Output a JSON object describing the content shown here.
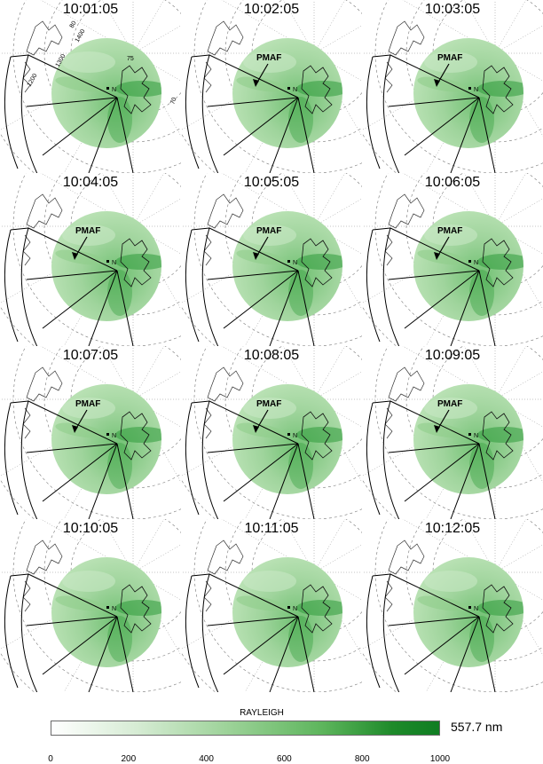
{
  "panels": [
    {
      "time": "10:01:05",
      "pmaf": false,
      "grid_labels": true
    },
    {
      "time": "10:02:05",
      "pmaf": true,
      "grid_labels": false
    },
    {
      "time": "10:03:05",
      "pmaf": true,
      "grid_labels": false
    },
    {
      "time": "10:04:05",
      "pmaf": true,
      "grid_labels": false
    },
    {
      "time": "10:05:05",
      "pmaf": true,
      "grid_labels": false
    },
    {
      "time": "10:06:05",
      "pmaf": true,
      "grid_labels": false
    },
    {
      "time": "10:07:05",
      "pmaf": true,
      "grid_labels": false
    },
    {
      "time": "10:08:05",
      "pmaf": true,
      "grid_labels": false
    },
    {
      "time": "10:09:05",
      "pmaf": true,
      "grid_labels": false
    },
    {
      "time": "10:10:05",
      "pmaf": false,
      "grid_labels": false
    },
    {
      "time": "10:11:05",
      "pmaf": false,
      "grid_labels": false
    },
    {
      "time": "10:12:05",
      "pmaf": false,
      "grid_labels": false
    }
  ],
  "pmaf_label": "PMAF",
  "station_label": "N",
  "grid_labels": {
    "lat_80": "80",
    "lat_75": "75",
    "lat_70": "70",
    "mlt_1400": "1400",
    "mlt_1300": "1300",
    "mlt_1200": "1200"
  },
  "colorbar": {
    "title": "RAYLEIGH",
    "wavelength": "557.7 nm",
    "ticks": [
      "0",
      "200",
      "400",
      "600",
      "800",
      "1000"
    ],
    "min": 0,
    "max": 1000
  },
  "colors": {
    "green_light": "#aedcab",
    "green_dark": "#2e9a3a",
    "line": "#000000"
  }
}
